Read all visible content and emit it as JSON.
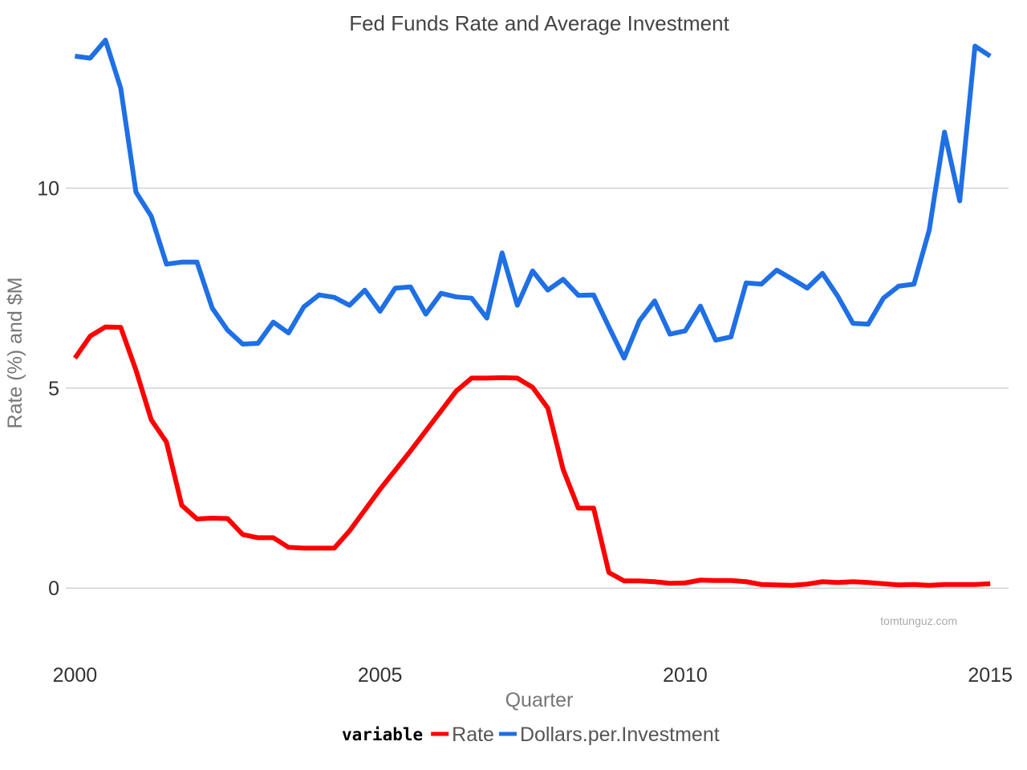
{
  "chart_data": {
    "type": "line",
    "title": "Fed Funds Rate and Average Investment",
    "xlabel": "Quarter",
    "ylabel": "Rate (%) and $M",
    "xlim": [
      1999.85,
      2015.3
    ],
    "ylim": [
      -1.7,
      13.5
    ],
    "x_ticks": [
      2000,
      2005,
      2010,
      2015
    ],
    "y_ticks": [
      0,
      5,
      10
    ],
    "grid": "horizontal",
    "legend": {
      "title": "variable",
      "placement": "bottom"
    },
    "watermark": "tomtunguz.com",
    "x": [
      2000,
      2000.25,
      2000.5,
      2000.75,
      2001,
      2001.25,
      2001.5,
      2001.75,
      2002,
      2002.25,
      2002.5,
      2002.75,
      2003,
      2003.25,
      2003.5,
      2003.75,
      2004,
      2004.25,
      2004.5,
      2004.75,
      2005,
      2005.25,
      2005.5,
      2005.75,
      2006,
      2006.25,
      2006.5,
      2006.75,
      2007,
      2007.25,
      2007.5,
      2007.75,
      2008,
      2008.25,
      2008.5,
      2008.75,
      2009,
      2009.25,
      2009.5,
      2009.75,
      2010,
      2010.25,
      2010.5,
      2010.75,
      2011,
      2011.25,
      2011.5,
      2011.75,
      2012,
      2012.25,
      2012.5,
      2012.75,
      2013,
      2013.25,
      2013.5,
      2013.75,
      2014,
      2014.25,
      2014.5,
      2014.75,
      2015
    ],
    "series": [
      {
        "name": "Rate",
        "color": "#ff0000",
        "values": [
          5.75,
          6.3,
          6.53,
          6.52,
          5.45,
          4.21,
          3.65,
          2.07,
          1.73,
          1.75,
          1.74,
          1.34,
          1.26,
          1.26,
          1.02,
          1.0,
          1.0,
          1.0,
          1.43,
          1.95,
          2.47,
          2.95,
          3.43,
          3.93,
          4.43,
          4.93,
          5.25,
          5.25,
          5.26,
          5.25,
          5.02,
          4.5,
          2.97,
          2.0,
          2.0,
          0.39,
          0.18,
          0.18,
          0.16,
          0.12,
          0.13,
          0.2,
          0.19,
          0.19,
          0.16,
          0.09,
          0.08,
          0.07,
          0.1,
          0.16,
          0.14,
          0.16,
          0.14,
          0.11,
          0.08,
          0.09,
          0.07,
          0.09,
          0.09,
          0.09,
          0.11
        ]
      },
      {
        "name": "Dollars.per.Investment",
        "color": "#1f6fe5",
        "values": [
          13.3,
          13.25,
          13.7,
          12.5,
          9.9,
          9.3,
          8.1,
          8.15,
          8.15,
          7.0,
          6.45,
          6.1,
          6.12,
          6.65,
          6.38,
          7.03,
          7.33,
          7.27,
          7.07,
          7.45,
          6.92,
          7.5,
          7.53,
          6.85,
          7.37,
          7.28,
          7.25,
          6.75,
          8.38,
          7.07,
          7.93,
          7.45,
          7.72,
          7.32,
          7.33,
          6.53,
          5.75,
          6.68,
          7.18,
          6.35,
          6.43,
          7.05,
          6.2,
          6.28,
          7.63,
          7.6,
          7.95,
          7.73,
          7.5,
          7.87,
          7.3,
          6.62,
          6.6,
          7.25,
          7.55,
          7.6,
          8.95,
          11.4,
          9.68,
          13.55,
          13.3
        ]
      }
    ]
  }
}
